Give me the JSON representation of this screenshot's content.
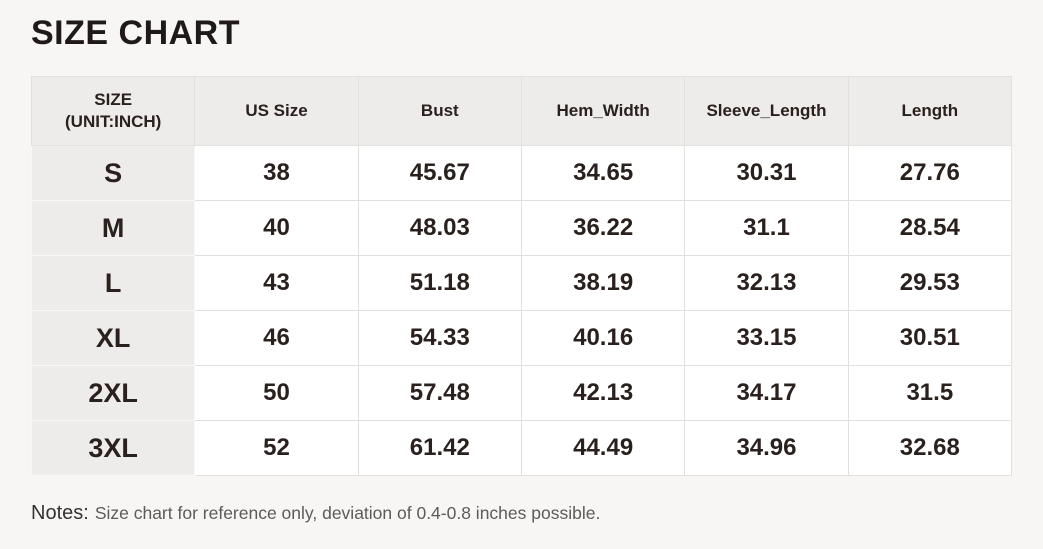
{
  "page": {
    "title": "SIZE CHART"
  },
  "table": {
    "size_header": {
      "line1": "SIZE",
      "line2": "(UNIT:INCH)"
    },
    "columns": [
      "US Size",
      "Bust",
      "Hem_Width",
      "Sleeve_Length",
      "Length"
    ],
    "rows": [
      {
        "size": "S",
        "us_size": "38",
        "bust": "45.67",
        "hem_width": "34.65",
        "sleeve_length": "30.31",
        "length": "27.76"
      },
      {
        "size": "M",
        "us_size": "40",
        "bust": "48.03",
        "hem_width": "36.22",
        "sleeve_length": "31.1",
        "length": "28.54"
      },
      {
        "size": "L",
        "us_size": "43",
        "bust": "51.18",
        "hem_width": "38.19",
        "sleeve_length": "32.13",
        "length": "29.53"
      },
      {
        "size": "XL",
        "us_size": "46",
        "bust": "54.33",
        "hem_width": "40.16",
        "sleeve_length": "33.15",
        "length": "30.51"
      },
      {
        "size": "2XL",
        "us_size": "50",
        "bust": "57.48",
        "hem_width": "42.13",
        "sleeve_length": "34.17",
        "length": "31.5"
      },
      {
        "size": "3XL",
        "us_size": "52",
        "bust": "61.42",
        "hem_width": "44.49",
        "sleeve_length": "34.96",
        "length": "32.68"
      }
    ]
  },
  "notes": {
    "label": "Notes:",
    "text": "Size chart for reference only, deviation of 0.4-0.8 inches possible."
  },
  "colors": {
    "page_background": "#f7f6f5",
    "header_background": "#edecea",
    "cell_background": "#ffffff",
    "border": "#e2e0dd",
    "text": "#2a211e",
    "notes_text": "#5e5a57"
  }
}
